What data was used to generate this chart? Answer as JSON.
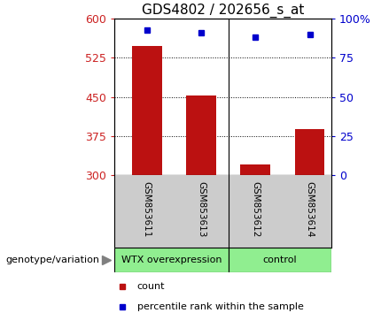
{
  "title": "GDS4802 / 202656_s_at",
  "samples": [
    "GSM853611",
    "GSM853613",
    "GSM853612",
    "GSM853614"
  ],
  "count_values": [
    548,
    453,
    320,
    388
  ],
  "percentile_values": [
    93,
    91,
    88,
    90
  ],
  "ylim_left": [
    300,
    600
  ],
  "ylim_right": [
    0,
    100
  ],
  "yticks_left": [
    300,
    375,
    450,
    525,
    600
  ],
  "yticks_right": [
    0,
    25,
    50,
    75,
    100
  ],
  "ytick_labels_right": [
    "0",
    "25",
    "50",
    "75",
    "100%"
  ],
  "bar_color": "#bb1111",
  "dot_color": "#0000cc",
  "left_axis_color": "#cc2222",
  "right_axis_color": "#0000cc",
  "bar_width": 0.55,
  "tick_area_color": "#cccccc",
  "group_labels": [
    "WTX overexpression",
    "control"
  ],
  "group_color1": "#90ee90",
  "group_color2": "#90ee90",
  "geno_label": "genotype/variation",
  "legend_count": "count",
  "legend_pct": "percentile rank within the sample",
  "title_fontsize": 11,
  "axis_fontsize": 9,
  "label_fontsize": 8,
  "sample_fontsize": 7.5,
  "group_separator_x": 1.5,
  "xlim": [
    -0.6,
    3.4
  ]
}
